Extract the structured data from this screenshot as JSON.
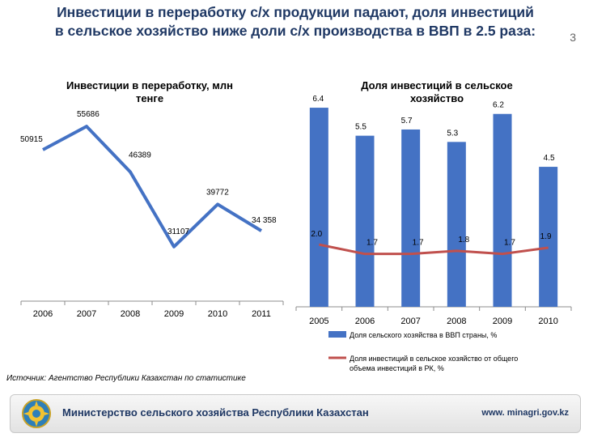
{
  "slide": {
    "headline_line1": "Инвестиции в переработку с/х продукции падают,  доля инвестиций",
    "headline_line2": "в сельское хозяйство ниже доли с/х производства в ВВП в 2.5 раза:",
    "number": "3"
  },
  "chart_data": [
    {
      "type": "line",
      "title_line1": "Инвестиции в переработку, млн",
      "title_line2": "тенге",
      "categories": [
        "2006",
        "2007",
        "2008",
        "2009",
        "2010",
        "2011"
      ],
      "values": [
        50915,
        55686,
        46389,
        31107,
        39772,
        34358
      ],
      "data_labels": [
        "50915",
        "55686",
        "46389",
        "31107",
        "39772",
        "34 358"
      ],
      "color": "#4472c4",
      "grid": false
    },
    {
      "type": "bar+line",
      "title_line1": "Доля инвестиций в сельское",
      "title_line2": "хозяйство",
      "categories": [
        "2005",
        "2006",
        "2007",
        "2008",
        "2009",
        "2010"
      ],
      "series": [
        {
          "name": "Доля сельского хозяйства в ВВП страны, %",
          "type": "bar",
          "color": "#4472c4",
          "values": [
            6.4,
            5.5,
            5.7,
            5.3,
            6.2,
            4.5
          ],
          "labels": [
            "6.4",
            "5.5",
            "5.7",
            "5.3",
            "6.2",
            "4.5"
          ]
        },
        {
          "name_line1": "Доля инвестиций в сельское хозяйство от общего",
          "name_line2": "объема инвестиций в РК, %",
          "type": "line",
          "color": "#c0504d",
          "values": [
            2.0,
            1.7,
            1.7,
            1.8,
            1.7,
            1.9
          ],
          "labels": [
            "2.0",
            "1.7",
            "1.7",
            "1.8",
            "1.7",
            "1.9"
          ]
        }
      ],
      "legend": "bottom",
      "grid": false
    }
  ],
  "source": "Источник: Агентство Республики Казахстан по статистике",
  "footer": {
    "ministry": "Министерство сельского хозяйства Республики Казахстан",
    "website": "www. minagri.gov.kz",
    "emblem_icon": "kazakhstan-emblem-icon"
  }
}
